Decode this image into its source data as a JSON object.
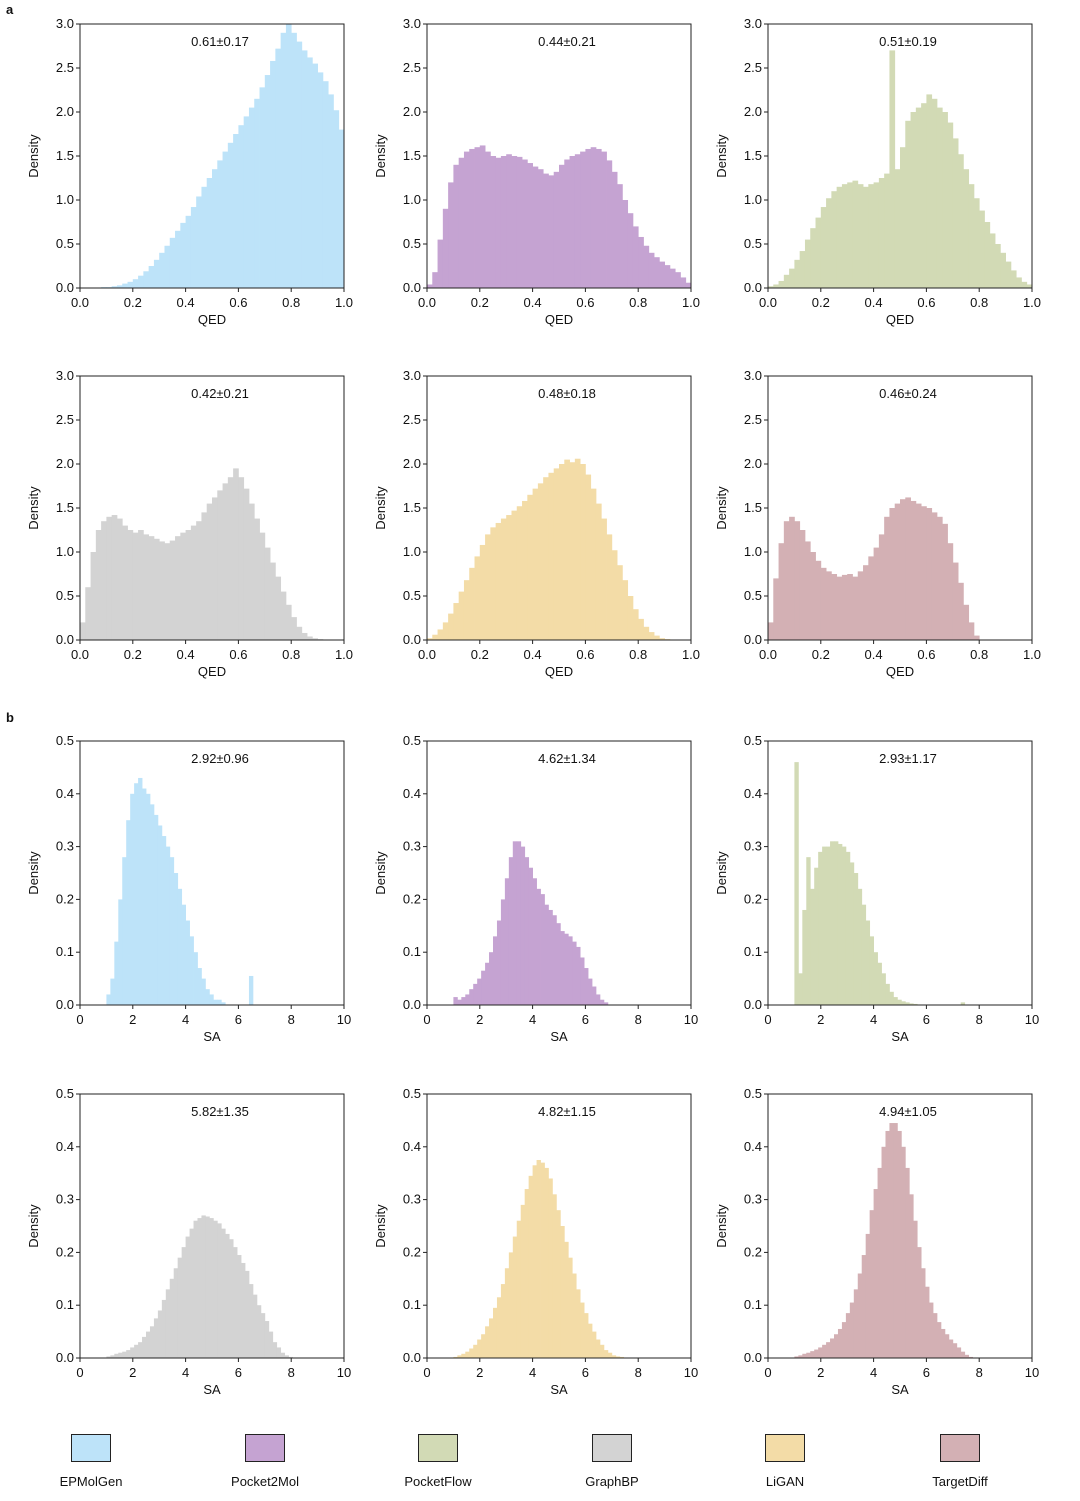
{
  "figure": {
    "panel_labels": {
      "a": "a",
      "b": "b"
    },
    "colors": {
      "EPMolGen": "#bde3f9",
      "Pocket2Mol": "#c5a3d2",
      "PocketFlow": "#d2dab5",
      "GraphBP": "#d3d3d3",
      "LiGAN": "#f3dca7",
      "TargetDiff": "#d3b0b4"
    },
    "legend": [
      {
        "name": "EPMolGen",
        "color": "#bde3f9"
      },
      {
        "name": "Pocket2Mol",
        "color": "#c5a3d2"
      },
      {
        "name": "PocketFlow",
        "color": "#d2dab5"
      },
      {
        "name": "GraphBP",
        "color": "#d3d3d3"
      },
      {
        "name": "LiGAN",
        "color": "#f3dca7"
      },
      {
        "name": "TargetDiff",
        "color": "#d3b0b4"
      }
    ]
  },
  "chart_data": [
    {
      "type": "histogram",
      "panel": "a",
      "model": "EPMolGen",
      "title": "0.61±0.17",
      "xlabel": "QED",
      "ylabel": "Density",
      "xlim": [
        0,
        1
      ],
      "ylim": [
        0,
        3
      ],
      "xticks": [
        "0.0",
        "0.2",
        "0.4",
        "0.6",
        "0.8",
        "1.0"
      ],
      "yticks": [
        "0.0",
        "0.5",
        "1.0",
        "1.5",
        "2.0",
        "2.5",
        "3.0"
      ],
      "bin_start": 0,
      "bin_width": 0.02,
      "values": [
        0,
        0,
        0,
        0,
        0.01,
        0.01,
        0.02,
        0.03,
        0.05,
        0.07,
        0.1,
        0.14,
        0.19,
        0.25,
        0.32,
        0.4,
        0.48,
        0.57,
        0.65,
        0.74,
        0.82,
        0.92,
        1.04,
        1.15,
        1.25,
        1.35,
        1.45,
        1.55,
        1.65,
        1.75,
        1.85,
        1.95,
        2.05,
        2.15,
        2.28,
        2.42,
        2.58,
        2.72,
        2.9,
        3.0,
        2.9,
        2.8,
        2.7,
        2.62,
        2.55,
        2.45,
        2.35,
        2.2,
        2.02,
        1.8
      ]
    },
    {
      "type": "histogram",
      "panel": "a",
      "model": "Pocket2Mol",
      "title": "0.44±0.21",
      "xlabel": "QED",
      "ylabel": "Density",
      "xlim": [
        0,
        1
      ],
      "ylim": [
        0,
        3
      ],
      "xticks": [
        "0.0",
        "0.2",
        "0.4",
        "0.6",
        "0.8",
        "1.0"
      ],
      "yticks": [
        "0.0",
        "0.5",
        "1.0",
        "1.5",
        "2.0",
        "2.5",
        "3.0"
      ],
      "bin_start": 0,
      "bin_width": 0.02,
      "values": [
        0.04,
        0.18,
        0.55,
        0.9,
        1.2,
        1.4,
        1.48,
        1.55,
        1.58,
        1.6,
        1.62,
        1.55,
        1.5,
        1.48,
        1.5,
        1.52,
        1.5,
        1.49,
        1.46,
        1.42,
        1.38,
        1.35,
        1.3,
        1.28,
        1.32,
        1.4,
        1.46,
        1.5,
        1.52,
        1.55,
        1.58,
        1.6,
        1.58,
        1.55,
        1.45,
        1.32,
        1.18,
        1.0,
        0.85,
        0.7,
        0.58,
        0.48,
        0.4,
        0.35,
        0.3,
        0.26,
        0.22,
        0.18,
        0.12,
        0.06
      ]
    },
    {
      "type": "histogram",
      "panel": "a",
      "model": "PocketFlow",
      "title": "0.51±0.19",
      "xlabel": "QED",
      "ylabel": "Density",
      "xlim": [
        0,
        1
      ],
      "ylim": [
        0,
        3
      ],
      "xticks": [
        "0.0",
        "0.2",
        "0.4",
        "0.6",
        "0.8",
        "1.0"
      ],
      "yticks": [
        "0.0",
        "0.5",
        "1.0",
        "1.5",
        "2.0",
        "2.5",
        "3.0"
      ],
      "bin_start": 0,
      "bin_width": 0.02,
      "values": [
        0.02,
        0.04,
        0.08,
        0.15,
        0.22,
        0.32,
        0.42,
        0.55,
        0.68,
        0.8,
        0.92,
        1.02,
        1.1,
        1.15,
        1.18,
        1.2,
        1.22,
        1.18,
        1.15,
        1.18,
        1.2,
        1.25,
        1.3,
        2.7,
        1.35,
        1.6,
        1.9,
        2.0,
        2.05,
        2.1,
        2.2,
        2.15,
        2.05,
        2.0,
        1.88,
        1.7,
        1.52,
        1.35,
        1.18,
        1.02,
        0.88,
        0.75,
        0.62,
        0.5,
        0.4,
        0.3,
        0.2,
        0.12,
        0.07,
        0.04
      ]
    },
    {
      "type": "histogram",
      "panel": "a",
      "model": "GraphBP",
      "title": "0.42±0.21",
      "xlabel": "QED",
      "ylabel": "Density",
      "xlim": [
        0,
        1
      ],
      "ylim": [
        0,
        3
      ],
      "xticks": [
        "0.0",
        "0.2",
        "0.4",
        "0.6",
        "0.8",
        "1.0"
      ],
      "yticks": [
        "0.0",
        "0.5",
        "1.0",
        "1.5",
        "2.0",
        "2.5",
        "3.0"
      ],
      "bin_start": 0,
      "bin_width": 0.02,
      "values": [
        0.2,
        0.6,
        1.0,
        1.25,
        1.35,
        1.4,
        1.42,
        1.38,
        1.3,
        1.25,
        1.22,
        1.25,
        1.2,
        1.18,
        1.15,
        1.12,
        1.1,
        1.13,
        1.18,
        1.22,
        1.25,
        1.3,
        1.35,
        1.45,
        1.55,
        1.62,
        1.7,
        1.78,
        1.85,
        1.95,
        1.85,
        1.72,
        1.55,
        1.38,
        1.22,
        1.05,
        0.88,
        0.72,
        0.55,
        0.4,
        0.26,
        0.15,
        0.08,
        0.04,
        0.02,
        0.01,
        0,
        0,
        0,
        0
      ]
    },
    {
      "type": "histogram",
      "panel": "a",
      "model": "LiGAN",
      "title": "0.48±0.18",
      "xlabel": "QED",
      "ylabel": "Density",
      "xlim": [
        0,
        1
      ],
      "ylim": [
        0,
        3
      ],
      "xticks": [
        "0.0",
        "0.2",
        "0.4",
        "0.6",
        "0.8",
        "1.0"
      ],
      "yticks": [
        "0.0",
        "0.5",
        "1.0",
        "1.5",
        "2.0",
        "2.5",
        "3.0"
      ],
      "bin_start": 0,
      "bin_width": 0.02,
      "values": [
        0.02,
        0.06,
        0.12,
        0.2,
        0.3,
        0.42,
        0.55,
        0.68,
        0.82,
        0.95,
        1.08,
        1.2,
        1.28,
        1.33,
        1.38,
        1.42,
        1.47,
        1.52,
        1.58,
        1.65,
        1.72,
        1.78,
        1.85,
        1.9,
        1.95,
        2.0,
        2.05,
        2.02,
        2.06,
        2.0,
        1.88,
        1.72,
        1.55,
        1.38,
        1.2,
        1.02,
        0.85,
        0.68,
        0.5,
        0.35,
        0.24,
        0.15,
        0.09,
        0.05,
        0.02,
        0.01,
        0,
        0,
        0,
        0
      ]
    },
    {
      "type": "histogram",
      "panel": "a",
      "model": "TargetDiff",
      "title": "0.46±0.24",
      "xlabel": "QED",
      "ylabel": "Density",
      "xlim": [
        0,
        1
      ],
      "ylim": [
        0,
        3
      ],
      "xticks": [
        "0.0",
        "0.2",
        "0.4",
        "0.6",
        "0.8",
        "1.0"
      ],
      "yticks": [
        "0.0",
        "0.5",
        "1.0",
        "1.5",
        "2.0",
        "2.5",
        "3.0"
      ],
      "bin_start": 0,
      "bin_width": 0.02,
      "values": [
        0.2,
        0.7,
        1.1,
        1.35,
        1.4,
        1.35,
        1.25,
        1.12,
        1.0,
        0.9,
        0.82,
        0.78,
        0.75,
        0.72,
        0.74,
        0.75,
        0.72,
        0.78,
        0.85,
        0.95,
        1.05,
        1.2,
        1.4,
        1.5,
        1.55,
        1.6,
        1.62,
        1.58,
        1.55,
        1.52,
        1.5,
        1.45,
        1.4,
        1.32,
        1.1,
        0.88,
        0.65,
        0.4,
        0.2,
        0.05,
        0,
        0,
        0,
        0,
        0,
        0,
        0,
        0,
        0,
        0
      ]
    },
    {
      "type": "histogram",
      "panel": "b",
      "model": "EPMolGen",
      "title": "2.92±0.96",
      "xlabel": "SA",
      "ylabel": "Density",
      "xlim": [
        0,
        10
      ],
      "ylim": [
        0,
        0.5
      ],
      "xticks": [
        "0",
        "2",
        "4",
        "6",
        "8",
        "10"
      ],
      "yticks": [
        "0.0",
        "0.1",
        "0.2",
        "0.3",
        "0.4",
        "0.5"
      ],
      "bin_start": 1,
      "bin_width": 0.15,
      "values": [
        0.02,
        0.05,
        0.12,
        0.2,
        0.28,
        0.35,
        0.4,
        0.42,
        0.43,
        0.41,
        0.4,
        0.38,
        0.36,
        0.34,
        0.32,
        0.3,
        0.28,
        0.25,
        0.22,
        0.19,
        0.16,
        0.13,
        0.1,
        0.07,
        0.05,
        0.03,
        0.02,
        0.01,
        0.01,
        0.005,
        0,
        0,
        0,
        0,
        0,
        0,
        0.055,
        0
      ]
    },
    {
      "type": "histogram",
      "panel": "b",
      "model": "Pocket2Mol",
      "title": "4.62±1.34",
      "xlabel": "SA",
      "ylabel": "Density",
      "xlim": [
        0,
        10
      ],
      "ylim": [
        0,
        0.5
      ],
      "xticks": [
        "0",
        "2",
        "4",
        "6",
        "8",
        "10"
      ],
      "yticks": [
        "0.0",
        "0.1",
        "0.2",
        "0.3",
        "0.4",
        "0.5"
      ],
      "bin_start": 1,
      "bin_width": 0.15,
      "values": [
        0.015,
        0.01,
        0.015,
        0.02,
        0.03,
        0.04,
        0.05,
        0.065,
        0.08,
        0.1,
        0.13,
        0.16,
        0.2,
        0.24,
        0.28,
        0.31,
        0.31,
        0.3,
        0.28,
        0.26,
        0.24,
        0.22,
        0.21,
        0.19,
        0.18,
        0.17,
        0.155,
        0.14,
        0.135,
        0.13,
        0.12,
        0.11,
        0.09,
        0.07,
        0.05,
        0.035,
        0.02,
        0.01,
        0.005,
        0
      ]
    },
    {
      "type": "histogram",
      "panel": "b",
      "model": "PocketFlow",
      "title": "2.93±1.17",
      "xlabel": "SA",
      "ylabel": "Density",
      "xlim": [
        0,
        10
      ],
      "ylim": [
        0,
        0.5
      ],
      "xticks": [
        "0",
        "2",
        "4",
        "6",
        "8",
        "10"
      ],
      "yticks": [
        "0.0",
        "0.1",
        "0.2",
        "0.3",
        "0.4",
        "0.5"
      ],
      "bin_start": 1,
      "bin_width": 0.15,
      "values": [
        0.46,
        0.06,
        0.18,
        0.28,
        0.22,
        0.26,
        0.29,
        0.3,
        0.3,
        0.31,
        0.31,
        0.305,
        0.3,
        0.29,
        0.27,
        0.25,
        0.22,
        0.19,
        0.16,
        0.13,
        0.1,
        0.08,
        0.06,
        0.04,
        0.025,
        0.015,
        0.01,
        0.007,
        0.005,
        0.003,
        0.002,
        0.001,
        0,
        0,
        0,
        0,
        0,
        0,
        0,
        0,
        0,
        0,
        0.005,
        0
      ]
    },
    {
      "type": "histogram",
      "panel": "b",
      "model": "GraphBP",
      "title": "5.82±1.35",
      "xlabel": "SA",
      "ylabel": "Density",
      "xlim": [
        0,
        10
      ],
      "ylim": [
        0,
        0.5
      ],
      "xticks": [
        "0",
        "2",
        "4",
        "6",
        "8",
        "10"
      ],
      "yticks": [
        "0.0",
        "0.1",
        "0.2",
        "0.3",
        "0.4",
        "0.5"
      ],
      "bin_start": 1,
      "bin_width": 0.15,
      "values": [
        0.003,
        0.005,
        0.008,
        0.01,
        0.012,
        0.015,
        0.02,
        0.025,
        0.03,
        0.04,
        0.05,
        0.06,
        0.075,
        0.09,
        0.11,
        0.13,
        0.15,
        0.17,
        0.19,
        0.21,
        0.23,
        0.245,
        0.26,
        0.265,
        0.27,
        0.268,
        0.265,
        0.26,
        0.255,
        0.245,
        0.235,
        0.225,
        0.21,
        0.195,
        0.18,
        0.165,
        0.14,
        0.12,
        0.1,
        0.085,
        0.07,
        0.05,
        0.03,
        0.02,
        0.01,
        0.005,
        0.002,
        0,
        0,
        0,
        0,
        0,
        0,
        0,
        0,
        0,
        0,
        0,
        0,
        0
      ]
    },
    {
      "type": "histogram",
      "panel": "b",
      "model": "LiGAN",
      "title": "4.82±1.15",
      "xlabel": "SA",
      "ylabel": "Density",
      "xlim": [
        0,
        10
      ],
      "ylim": [
        0,
        0.5
      ],
      "xticks": [
        "0",
        "2",
        "4",
        "6",
        "8",
        "10"
      ],
      "yticks": [
        "0.0",
        "0.1",
        "0.2",
        "0.3",
        "0.4",
        "0.5"
      ],
      "bin_start": 1,
      "bin_width": 0.15,
      "values": [
        0.002,
        0.005,
        0.008,
        0.012,
        0.018,
        0.025,
        0.035,
        0.045,
        0.06,
        0.075,
        0.095,
        0.115,
        0.14,
        0.17,
        0.2,
        0.23,
        0.26,
        0.29,
        0.32,
        0.345,
        0.365,
        0.375,
        0.37,
        0.36,
        0.34,
        0.31,
        0.28,
        0.25,
        0.22,
        0.19,
        0.16,
        0.13,
        0.105,
        0.085,
        0.065,
        0.05,
        0.035,
        0.025,
        0.015,
        0.01,
        0.005,
        0.003,
        0.002,
        0,
        0,
        0,
        0,
        0,
        0,
        0
      ]
    },
    {
      "type": "histogram",
      "panel": "b",
      "model": "TargetDiff",
      "title": "4.94±1.05",
      "xlabel": "SA",
      "ylabel": "Density",
      "xlim": [
        0,
        10
      ],
      "ylim": [
        0,
        0.5
      ],
      "xticks": [
        "0",
        "2",
        "4",
        "6",
        "8",
        "10"
      ],
      "yticks": [
        "0.0",
        "0.1",
        "0.2",
        "0.3",
        "0.4",
        "0.5"
      ],
      "bin_start": 1,
      "bin_width": 0.15,
      "values": [
        0.003,
        0.005,
        0.008,
        0.01,
        0.013,
        0.016,
        0.02,
        0.025,
        0.03,
        0.037,
        0.045,
        0.055,
        0.068,
        0.085,
        0.105,
        0.13,
        0.16,
        0.195,
        0.235,
        0.28,
        0.32,
        0.36,
        0.4,
        0.43,
        0.445,
        0.445,
        0.43,
        0.4,
        0.36,
        0.31,
        0.26,
        0.21,
        0.17,
        0.135,
        0.105,
        0.085,
        0.068,
        0.055,
        0.045,
        0.035,
        0.028,
        0.02,
        0.012,
        0.006,
        0.002,
        0,
        0,
        0,
        0,
        0
      ]
    }
  ]
}
